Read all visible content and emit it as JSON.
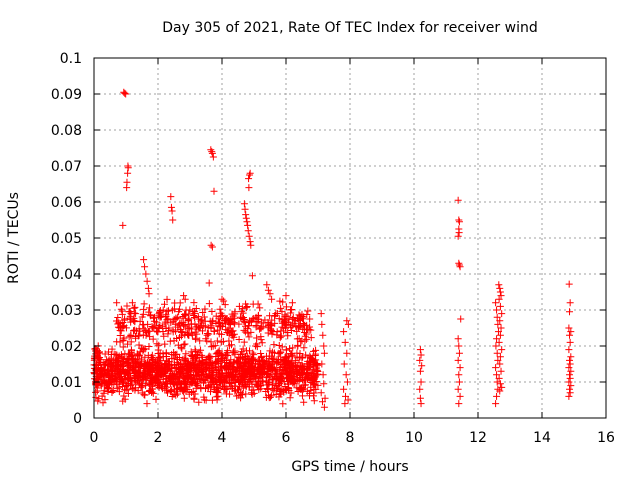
{
  "chart_data": {
    "type": "scatter",
    "title": "Day 305 of 2021, Rate Of TEC Index for receiver wind",
    "xlabel": "GPS time / hours",
    "ylabel": "ROTI / TECUs",
    "xlim": [
      0,
      16
    ],
    "ylim": [
      0,
      0.1
    ],
    "xticks": [
      0,
      2,
      4,
      6,
      8,
      10,
      12,
      14,
      16
    ],
    "xtick_labels": [
      "0",
      "2",
      "4",
      "6",
      "8",
      "10",
      "12",
      "14",
      "16"
    ],
    "yticks": [
      0,
      0.01,
      0.02,
      0.03,
      0.04,
      0.05,
      0.06,
      0.07,
      0.08,
      0.09,
      0.1
    ],
    "ytick_labels": [
      "0",
      "0.01",
      "0.02",
      "0.03",
      "0.04",
      "0.05",
      "0.06",
      "0.07",
      "0.08",
      "0.09",
      "0.1"
    ],
    "grid": true,
    "marker": "+",
    "marker_color": "#ff0000",
    "series": [
      {
        "name": "ROTI",
        "points": [
          [
            0.93,
            0.0905
          ],
          [
            0.96,
            0.0902
          ],
          [
            0.99,
            0.09
          ],
          [
            0.9,
            0.0535
          ],
          [
            1.02,
            0.064
          ],
          [
            1.03,
            0.0655
          ],
          [
            1.05,
            0.068
          ],
          [
            1.07,
            0.0695
          ],
          [
            1.06,
            0.07
          ],
          [
            1.2,
            0.032
          ],
          [
            1.25,
            0.0305
          ],
          [
            1.3,
            0.029
          ],
          [
            1.55,
            0.044
          ],
          [
            1.58,
            0.042
          ],
          [
            1.62,
            0.04
          ],
          [
            1.66,
            0.038
          ],
          [
            1.7,
            0.036
          ],
          [
            1.72,
            0.0345
          ],
          [
            2.4,
            0.0615
          ],
          [
            2.42,
            0.0585
          ],
          [
            2.44,
            0.0575
          ],
          [
            2.46,
            0.055
          ],
          [
            2.8,
            0.034
          ],
          [
            2.85,
            0.033
          ],
          [
            3.65,
            0.0745
          ],
          [
            3.68,
            0.074
          ],
          [
            3.7,
            0.0735
          ],
          [
            3.73,
            0.0725
          ],
          [
            3.66,
            0.048
          ],
          [
            3.7,
            0.0475
          ],
          [
            3.75,
            0.063
          ],
          [
            3.6,
            0.0375
          ],
          [
            4.0,
            0.033
          ],
          [
            4.05,
            0.0325
          ],
          [
            4.1,
            0.0315
          ],
          [
            4.7,
            0.0595
          ],
          [
            4.72,
            0.058
          ],
          [
            4.74,
            0.0565
          ],
          [
            4.76,
            0.0555
          ],
          [
            4.78,
            0.0545
          ],
          [
            4.8,
            0.0535
          ],
          [
            4.82,
            0.052
          ],
          [
            4.85,
            0.0505
          ],
          [
            4.88,
            0.049
          ],
          [
            4.9,
            0.048
          ],
          [
            4.83,
            0.0665
          ],
          [
            4.86,
            0.0675
          ],
          [
            4.88,
            0.068
          ],
          [
            4.84,
            0.064
          ],
          [
            4.95,
            0.0395
          ],
          [
            5.4,
            0.037
          ],
          [
            5.45,
            0.0355
          ],
          [
            5.5,
            0.0345
          ],
          [
            5.55,
            0.033
          ],
          [
            6.0,
            0.034
          ],
          [
            6.2,
            0.032
          ],
          [
            7.1,
            0.029
          ],
          [
            7.12,
            0.026
          ],
          [
            7.15,
            0.023
          ],
          [
            7.18,
            0.02
          ],
          [
            7.2,
            0.018
          ],
          [
            7.12,
            0.015
          ],
          [
            7.16,
            0.012
          ],
          [
            7.18,
            0.0095
          ],
          [
            7.1,
            0.007
          ],
          [
            7.14,
            0.0045
          ],
          [
            7.2,
            0.003
          ],
          [
            7.22,
            0.0055
          ],
          [
            7.8,
            0.024
          ],
          [
            7.85,
            0.021
          ],
          [
            7.9,
            0.018
          ],
          [
            7.82,
            0.015
          ],
          [
            7.88,
            0.012
          ],
          [
            7.92,
            0.01
          ],
          [
            7.8,
            0.008
          ],
          [
            7.86,
            0.006
          ],
          [
            7.94,
            0.005
          ],
          [
            7.9,
            0.027
          ],
          [
            7.95,
            0.026
          ],
          [
            7.84,
            0.004
          ],
          [
            10.2,
            0.019
          ],
          [
            10.22,
            0.0175
          ],
          [
            10.18,
            0.016
          ],
          [
            10.24,
            0.0145
          ],
          [
            10.2,
            0.013
          ],
          [
            10.22,
            0.01
          ],
          [
            10.18,
            0.008
          ],
          [
            10.2,
            0.0055
          ],
          [
            10.22,
            0.004
          ],
          [
            11.38,
            0.0605
          ],
          [
            11.4,
            0.055
          ],
          [
            11.42,
            0.0545
          ],
          [
            11.4,
            0.0525
          ],
          [
            11.41,
            0.0515
          ],
          [
            11.38,
            0.0505
          ],
          [
            11.4,
            0.043
          ],
          [
            11.42,
            0.0425
          ],
          [
            11.44,
            0.042
          ],
          [
            11.46,
            0.0275
          ],
          [
            11.38,
            0.022
          ],
          [
            11.4,
            0.02
          ],
          [
            11.42,
            0.018
          ],
          [
            11.38,
            0.016
          ],
          [
            11.44,
            0.014
          ],
          [
            11.4,
            0.012
          ],
          [
            11.42,
            0.01
          ],
          [
            11.38,
            0.008
          ],
          [
            11.44,
            0.006
          ],
          [
            11.4,
            0.004
          ],
          [
            12.55,
            0.032
          ],
          [
            12.58,
            0.03
          ],
          [
            12.6,
            0.028
          ],
          [
            12.62,
            0.026
          ],
          [
            12.64,
            0.024
          ],
          [
            12.58,
            0.022
          ],
          [
            12.56,
            0.02
          ],
          [
            12.6,
            0.018
          ],
          [
            12.62,
            0.016
          ],
          [
            12.55,
            0.014
          ],
          [
            12.58,
            0.012
          ],
          [
            12.6,
            0.01
          ],
          [
            12.62,
            0.008
          ],
          [
            12.58,
            0.006
          ],
          [
            12.55,
            0.004
          ],
          [
            12.65,
            0.037
          ],
          [
            12.68,
            0.036
          ],
          [
            12.7,
            0.035
          ],
          [
            12.72,
            0.034
          ],
          [
            12.66,
            0.033
          ],
          [
            12.7,
            0.031
          ],
          [
            12.74,
            0.029
          ],
          [
            12.68,
            0.027
          ],
          [
            12.72,
            0.025
          ],
          [
            12.7,
            0.023
          ],
          [
            12.66,
            0.021
          ],
          [
            12.74,
            0.019
          ],
          [
            12.7,
            0.017
          ],
          [
            12.68,
            0.015
          ],
          [
            12.72,
            0.013
          ],
          [
            12.66,
            0.011
          ],
          [
            12.7,
            0.0095
          ],
          [
            12.74,
            0.0085
          ],
          [
            12.68,
            0.0075
          ],
          [
            14.85,
            0.0372
          ],
          [
            14.88,
            0.032
          ],
          [
            14.86,
            0.0295
          ],
          [
            14.84,
            0.025
          ],
          [
            14.9,
            0.024
          ],
          [
            14.86,
            0.023
          ],
          [
            14.88,
            0.021
          ],
          [
            14.84,
            0.019
          ],
          [
            14.9,
            0.017
          ],
          [
            14.86,
            0.016
          ],
          [
            14.88,
            0.015
          ],
          [
            14.84,
            0.014
          ],
          [
            14.9,
            0.013
          ],
          [
            14.86,
            0.012
          ],
          [
            14.88,
            0.011
          ],
          [
            14.84,
            0.01
          ],
          [
            14.9,
            0.009
          ],
          [
            14.86,
            0.008
          ],
          [
            14.88,
            0.007
          ],
          [
            14.84,
            0.006
          ]
        ]
      }
    ],
    "dense_regions": [
      {
        "x_range": [
          0.0,
          7.0
        ],
        "y_range": [
          0.003,
          0.022
        ],
        "count": 1600
      },
      {
        "x_range": [
          0.7,
          6.8
        ],
        "y_range": [
          0.018,
          0.034
        ],
        "count": 450
      },
      {
        "x_range": [
          0.0,
          0.15
        ],
        "y_range": [
          0.004,
          0.026
        ],
        "count": 40
      }
    ]
  }
}
